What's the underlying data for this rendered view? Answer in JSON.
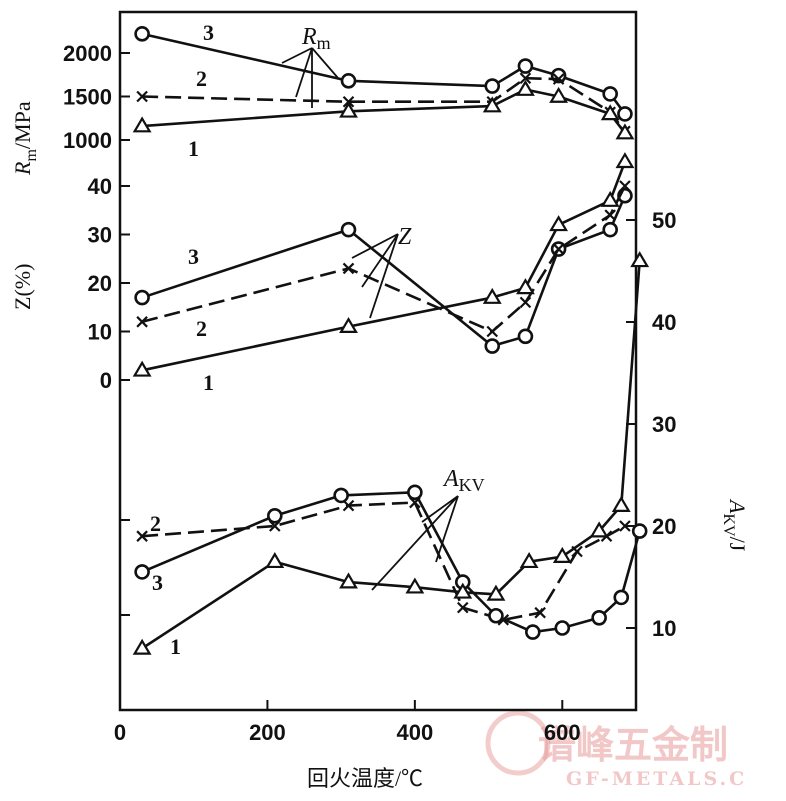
{
  "chart_data": {
    "type": "line",
    "xlabel": "回火温度/℃",
    "xlim": [
      0,
      700
    ],
    "x_ticks": [
      "0",
      "200",
      "400",
      "600"
    ],
    "panels": [
      {
        "id": "rm",
        "ylabel_main": "R",
        "ylabel_sub": "m",
        "ylabel_unit": "/MPa",
        "ylim": [
          1000,
          2000
        ],
        "y_ticks": [
          "1000",
          "1500",
          "2000"
        ],
        "y_tick_values": [
          1000,
          1500,
          2000
        ],
        "annotation_main": "R",
        "annotation_sub": "m",
        "series": [
          {
            "name": "3",
            "marker": "circle",
            "dash": false,
            "x": [
              30,
              310,
              505,
              550,
              595,
              665,
              685
            ],
            "y": [
              2220,
              1680,
              1620,
              1850,
              1740,
              1530,
              1300
            ]
          },
          {
            "name": "2",
            "marker": "x",
            "dash": true,
            "x": [
              30,
              310,
              505,
              550,
              595,
              665,
              685
            ],
            "y": [
              1500,
              1440,
              1440,
              1710,
              1700,
              1320,
              1100
            ]
          },
          {
            "name": "1",
            "marker": "triangle",
            "dash": false,
            "x": [
              30,
              310,
              505,
              550,
              595,
              665,
              685
            ],
            "y": [
              1160,
              1330,
              1390,
              1580,
              1500,
              1300,
              1080
            ]
          }
        ]
      },
      {
        "id": "z",
        "ylabel_main": "Z(%)",
        "ylim": [
          0,
          40
        ],
        "y_ticks": [
          "0",
          "10",
          "20",
          "30",
          "40"
        ],
        "y_tick_values": [
          0,
          10,
          20,
          30,
          40
        ],
        "annotation_main": "Z",
        "series": [
          {
            "name": "3",
            "marker": "circle",
            "dash": false,
            "x": [
              30,
              310,
              505,
              550,
              595,
              665,
              685
            ],
            "y": [
              17,
              31,
              7,
              9,
              27,
              31,
              38
            ]
          },
          {
            "name": "2",
            "marker": "x",
            "dash": true,
            "x": [
              30,
              310,
              505,
              550,
              595,
              665,
              685
            ],
            "y": [
              12,
              23,
              10,
              16,
              27,
              34,
              40
            ]
          },
          {
            "name": "1",
            "marker": "triangle",
            "dash": false,
            "x": [
              30,
              310,
              505,
              550,
              595,
              665,
              685
            ],
            "y": [
              2,
              11,
              17,
              19,
              32,
              37,
              45
            ]
          }
        ]
      },
      {
        "id": "akv",
        "ylabel_main": "A",
        "ylabel_sub": "KV",
        "ylabel_unit": "/J",
        "ylim": [
          10,
          50
        ],
        "y_ticks": [
          "10",
          "20",
          "30",
          "40",
          "50"
        ],
        "y_tick_values": [
          10,
          20,
          30,
          40,
          50
        ],
        "annotation_main": "A",
        "annotation_sub": "KV",
        "series": [
          {
            "name": "2",
            "marker": "x",
            "dash": true,
            "x": [
              30,
              210,
              310,
              400,
              465,
              520,
              570,
              620,
              660,
              685
            ],
            "y": [
              19,
              20,
              22,
              22.3,
              12,
              10.8,
              11.5,
              17.5,
              19,
              20
            ]
          },
          {
            "name": "3",
            "marker": "circle",
            "dash": false,
            "x": [
              30,
              210,
              300,
              400,
              465,
              510,
              560,
              600,
              650,
              680,
              705
            ],
            "y": [
              15.5,
              21,
              23,
              23.3,
              14.5,
              11.2,
              9.6,
              10,
              11,
              13,
              19.5
            ]
          },
          {
            "name": "1",
            "marker": "triangle",
            "dash": false,
            "x": [
              30,
              210,
              310,
              400,
              465,
              510,
              555,
              600,
              650,
              680,
              705
            ],
            "y": [
              8,
              16.5,
              14.5,
              14,
              13.5,
              13.3,
              16.5,
              17,
              19.5,
              22,
              46
            ]
          }
        ]
      }
    ]
  },
  "watermark": {
    "text_cn": "谱峰五金制",
    "text_en": "GF-METALS.C",
    "color": "#e79a9a"
  }
}
